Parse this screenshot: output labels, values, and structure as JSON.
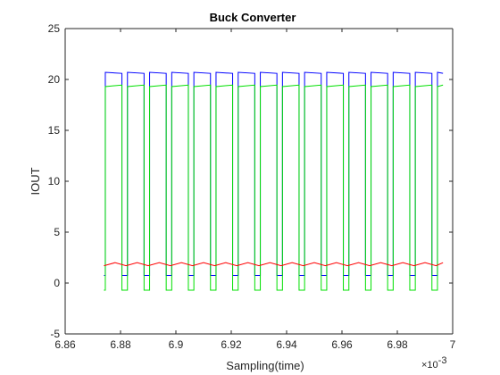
{
  "chart_data": {
    "type": "line",
    "title": "Buck Converter",
    "xlabel": "Sampling(time)",
    "ylabel": "IOUT",
    "x_exponent_label": "×10",
    "x_exponent_power": "-3",
    "x_exponent_scale": 0.001,
    "xlim": [
      6.86,
      7.0
    ],
    "ylim": [
      -5,
      25
    ],
    "xticks": [
      6.86,
      6.88,
      6.9,
      6.92,
      6.94,
      6.96,
      6.98,
      7.0
    ],
    "xtick_labels": [
      "6.86",
      "6.88",
      "6.9",
      "6.92",
      "6.94",
      "6.96",
      "6.98",
      "7"
    ],
    "yticks": [
      -5,
      0,
      5,
      10,
      15,
      20,
      25
    ],
    "ytick_labels": [
      "-5",
      "0",
      "5",
      "10",
      "15",
      "20",
      "25"
    ],
    "grid": false,
    "box": true,
    "time_range": [
      6.874,
      6.9965
    ],
    "series": [
      {
        "color": "#0000ff",
        "kind": "square",
        "period": 0.008,
        "high_phase_start": 6.8745,
        "high_duration": 0.006,
        "high": 20.7,
        "low": 0.75,
        "high_droop": -0.1
      },
      {
        "color": "#00e000",
        "kind": "square",
        "period": 0.008,
        "high_phase_start": 6.8745,
        "high_duration": 0.006,
        "high": 19.3,
        "low": -0.7,
        "high_droop": 0.15
      },
      {
        "color": "#ff0000",
        "kind": "triangle",
        "period": 0.008,
        "center": 1.85,
        "amplitude": 0.15
      }
    ]
  }
}
